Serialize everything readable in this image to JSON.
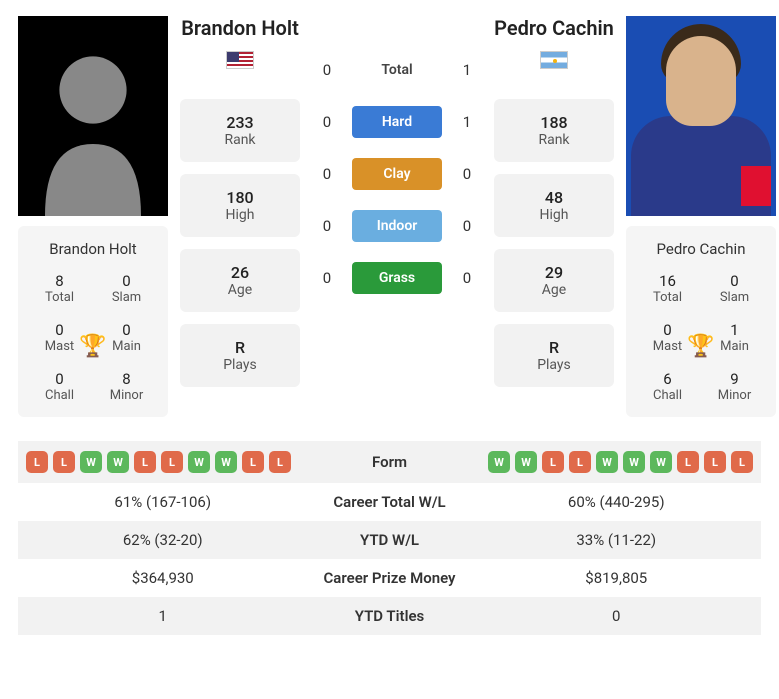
{
  "player1": {
    "name": "Brandon Holt",
    "flag": "us",
    "rank": "233",
    "high": "180",
    "age": "26",
    "plays": "R",
    "titles": {
      "total": "8",
      "slam": "0",
      "mast": "0",
      "main": "0",
      "chall": "0",
      "minor": "8"
    },
    "form": [
      "L",
      "L",
      "W",
      "W",
      "L",
      "L",
      "W",
      "W",
      "L",
      "L"
    ]
  },
  "player2": {
    "name": "Pedro Cachin",
    "flag": "ar",
    "rank": "188",
    "high": "48",
    "age": "29",
    "plays": "R",
    "titles": {
      "total": "16",
      "slam": "0",
      "mast": "0",
      "main": "1",
      "chall": "6",
      "minor": "9"
    },
    "form": [
      "W",
      "W",
      "L",
      "L",
      "W",
      "W",
      "W",
      "L",
      "L",
      "L"
    ]
  },
  "h2h": {
    "total": {
      "p1": "0",
      "p2": "1"
    },
    "hard": {
      "p1": "0",
      "p2": "1"
    },
    "clay": {
      "p1": "0",
      "p2": "0"
    },
    "indoor": {
      "p1": "0",
      "p2": "0"
    },
    "grass": {
      "p1": "0",
      "p2": "0"
    }
  },
  "labels": {
    "rank": "Rank",
    "high": "High",
    "age": "Age",
    "plays": "Plays",
    "total": "Total",
    "slam": "Slam",
    "mast": "Mast",
    "main": "Main",
    "chall": "Chall",
    "minor": "Minor",
    "h2h_total": "Total",
    "hard": "Hard",
    "clay": "Clay",
    "indoor": "Indoor",
    "grass": "Grass",
    "form": "Form",
    "career_wl": "Career Total W/L",
    "ytd_wl": "YTD W/L",
    "career_prize": "Career Prize Money",
    "ytd_titles": "YTD Titles"
  },
  "table": {
    "career_wl": {
      "p1": "61% (167-106)",
      "p2": "60% (440-295)"
    },
    "ytd_wl": {
      "p1": "62% (32-20)",
      "p2": "33% (11-22)"
    },
    "career_prize": {
      "p1": "$364,930",
      "p2": "$819,805"
    },
    "ytd_titles": {
      "p1": "1",
      "p2": "0"
    }
  }
}
